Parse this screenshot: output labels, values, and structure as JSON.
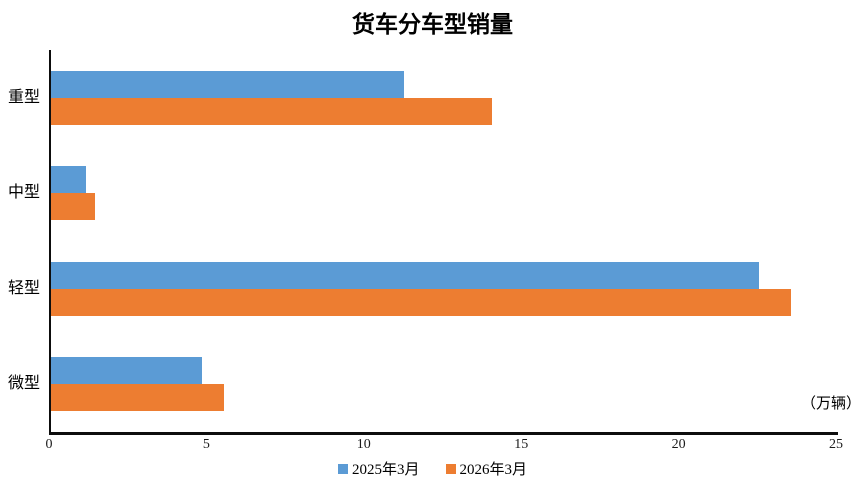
{
  "chart_data": {
    "type": "bar",
    "orientation": "horizontal",
    "title": "货车分车型销量",
    "unit_label": "（万辆）",
    "categories": [
      "重型",
      "中型",
      "轻型",
      "微型"
    ],
    "series": [
      {
        "name": "2025年3月",
        "color": "#5B9BD5",
        "values": [
          11.2,
          1.1,
          22.5,
          4.8
        ]
      },
      {
        "name": "2026年3月",
        "color": "#ED7D31",
        "values": [
          14.0,
          1.4,
          23.5,
          5.5
        ]
      }
    ],
    "x_ticks": [
      0,
      5,
      10,
      15,
      20,
      25
    ],
    "xlim": [
      0,
      25
    ],
    "grid": false,
    "legend_position": "bottom",
    "axis_color": "#0d0d0d",
    "background": "#ffffff"
  }
}
